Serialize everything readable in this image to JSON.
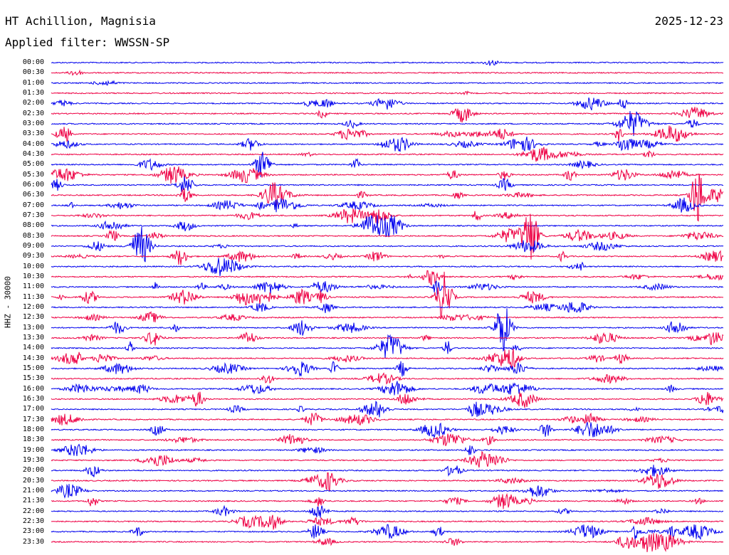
{
  "header": {
    "station": "HT Achillion, Magnisia",
    "date": "2025-12-23",
    "filter": "Applied filter: WWSSN-SP"
  },
  "channel_label": "HHZ - 30000",
  "colors": {
    "trace_a": "#0000ee",
    "trace_b": "#ee0044",
    "background": "#ffffff",
    "text": "#000000"
  },
  "chart_data": {
    "type": "line",
    "time_labels": [
      "00:00",
      "00:30",
      "01:00",
      "01:30",
      "02:00",
      "02:30",
      "03:00",
      "03:30",
      "04:00",
      "04:30",
      "05:00",
      "05:30",
      "06:00",
      "06:30",
      "07:00",
      "07:30",
      "08:00",
      "08:30",
      "09:00",
      "09:30",
      "10:00",
      "10:30",
      "11:00",
      "11:30",
      "12:00",
      "12:30",
      "13:00",
      "13:30",
      "14:00",
      "14:30",
      "15:00",
      "15:30",
      "16:00",
      "16:30",
      "17:00",
      "17:30",
      "18:00",
      "18:30",
      "19:00",
      "19:30",
      "20:00",
      "20:30",
      "21:00",
      "21:30",
      "22:00",
      "22:30",
      "23:00",
      "23:30"
    ]
  }
}
